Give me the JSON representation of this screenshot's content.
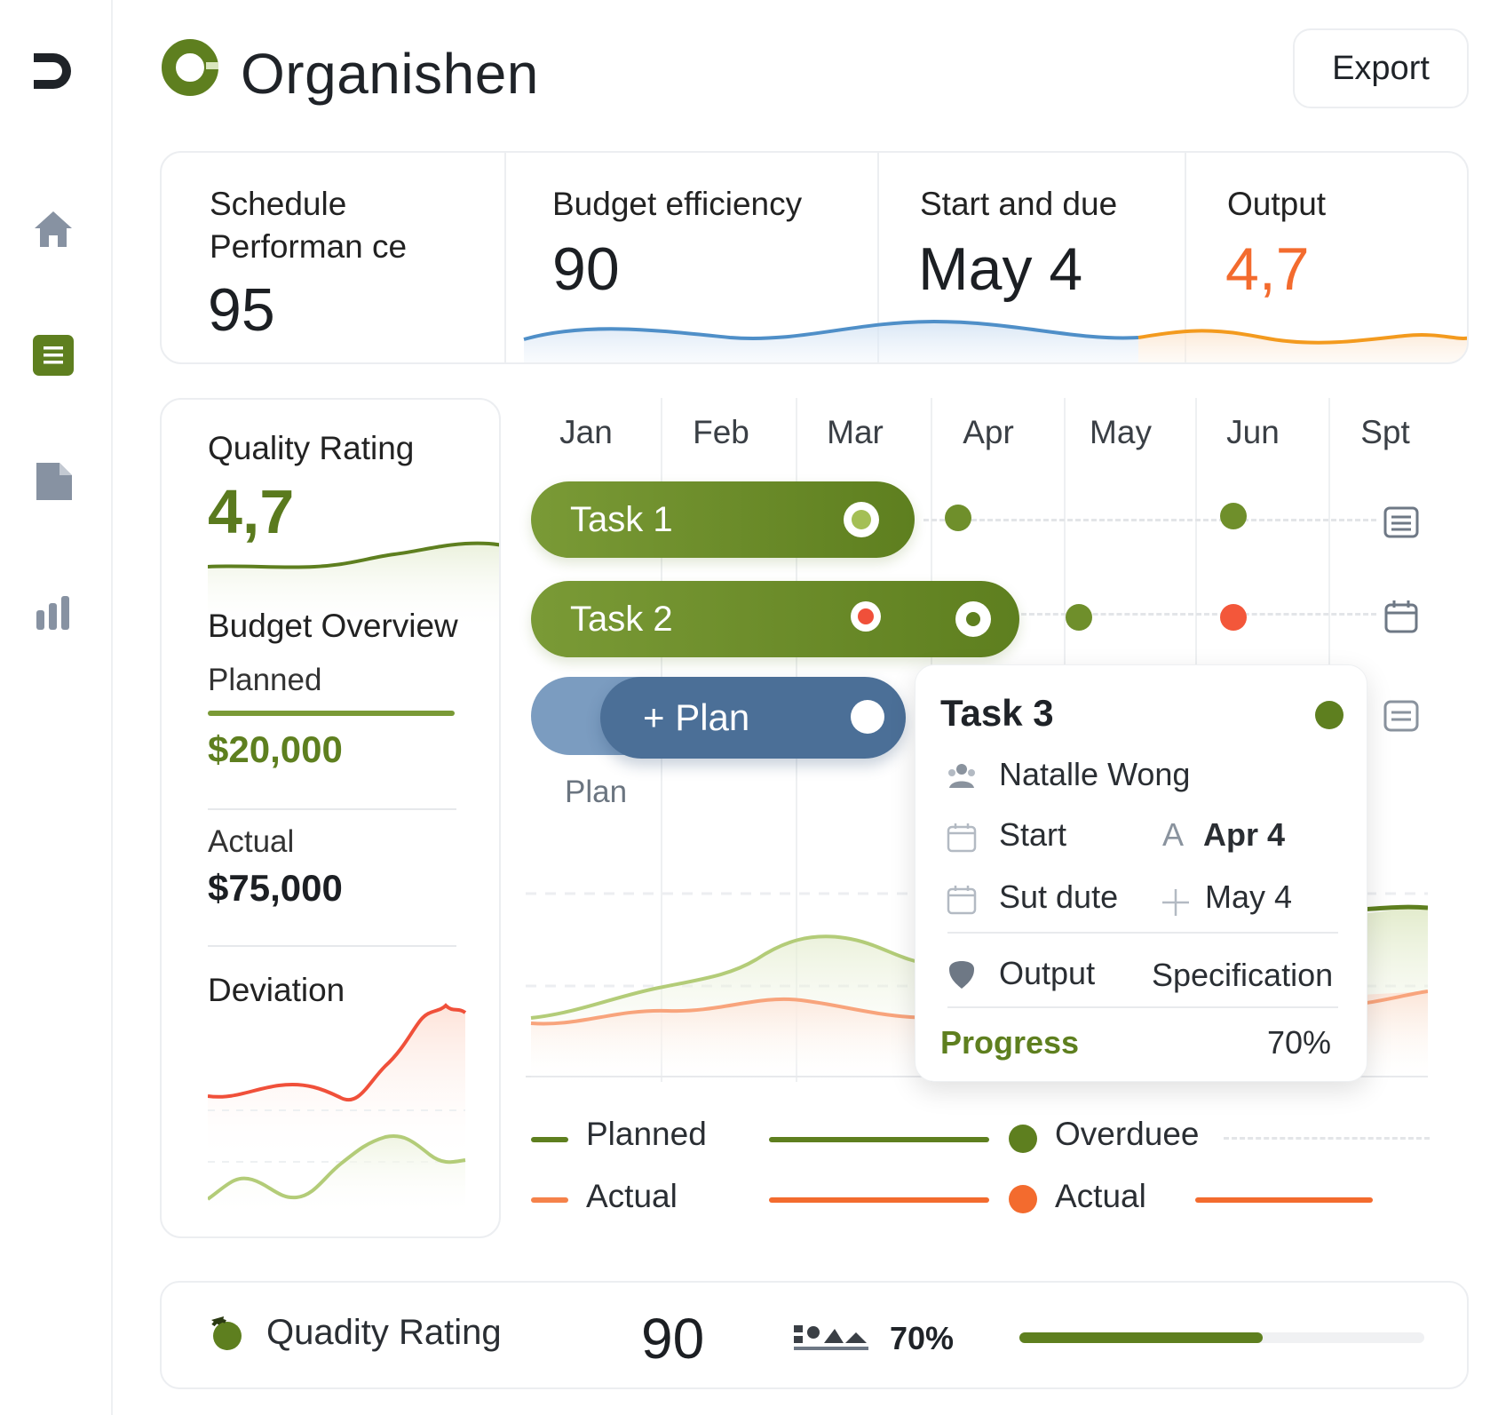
{
  "app": {
    "name": "Organishen",
    "export_label": "Export"
  },
  "sidebar": {
    "items": [
      "home",
      "tasks",
      "documents",
      "reports"
    ]
  },
  "kpis": [
    {
      "label_line1": "Schedule",
      "label_line2": "Performan ce",
      "value": "95"
    },
    {
      "label": "Budget efficiency",
      "value": "90"
    },
    {
      "label": "Start and due",
      "value": "May 4"
    },
    {
      "label": "Output",
      "value": "4,7"
    }
  ],
  "quality": {
    "title": "Quality Rating",
    "value": "4,7"
  },
  "budget": {
    "title": "Budget Overview",
    "planned_label": "Planned",
    "planned_value": "$20,000",
    "actual_label": "Actual",
    "actual_value": "$75,000",
    "deviation_label": "Deviation"
  },
  "gantt": {
    "months": [
      "Jan",
      "Feb",
      "Mar",
      "Apr",
      "May",
      "Jun",
      "Spt"
    ],
    "tasks": [
      {
        "label": "Task 1"
      },
      {
        "label": "Task 2"
      }
    ],
    "plan_button": "+ Plan",
    "plan_caption": "Plan"
  },
  "tooltip": {
    "title": "Task 3",
    "assignee": "Natalle Wong",
    "start_label": "Start",
    "start_prefix": "A",
    "start_value": "Apr 4",
    "due_label": "Sut dute",
    "due_value": "May 4",
    "output_label": "Output",
    "output_value": "Specification",
    "progress_label": "Progress",
    "progress_value": "70%"
  },
  "legend": {
    "planned": "Planned",
    "actual": "Actual",
    "overdue": "Overduee",
    "actual2": "Actual"
  },
  "footer": {
    "label": "Quadity Rating",
    "score": "90",
    "percent": "70%",
    "progress": 0.6
  },
  "colors": {
    "green": "#5e7f1f",
    "light_green": "#a9c46a",
    "orange": "#f36b2e",
    "blue": "#4b6f97",
    "red": "#f0503a"
  }
}
